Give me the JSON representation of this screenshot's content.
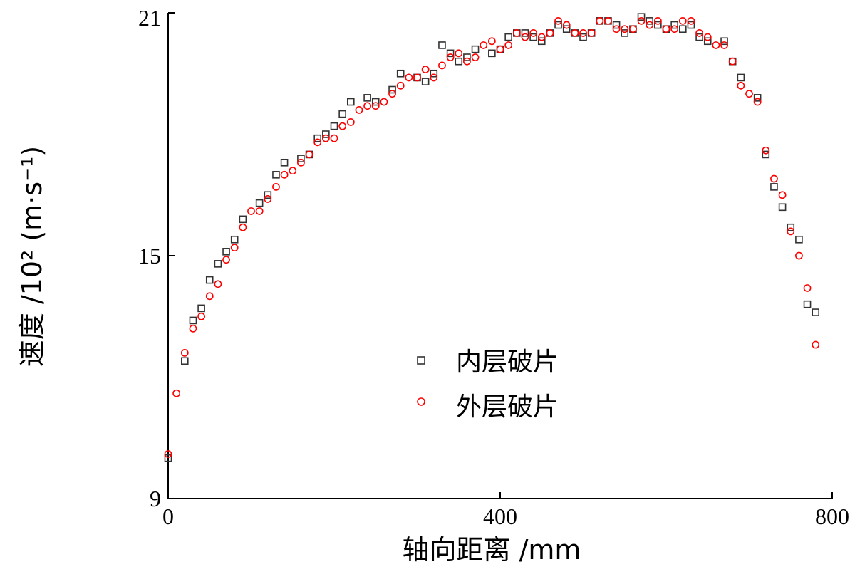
{
  "chart_data": {
    "type": "scatter",
    "xlabel": "轴向距离 /mm",
    "ylabel": "速度 /10² (m·s⁻¹)",
    "xlim": [
      0,
      800
    ],
    "ylim": [
      9,
      21
    ],
    "x_ticks": [
      "0",
      "400",
      "800"
    ],
    "y_ticks": [
      "9",
      "15",
      "21"
    ],
    "grid": false,
    "legend_position": "center",
    "series": [
      {
        "name": "内层破片",
        "marker": "square",
        "color": "#333333",
        "points": [
          [
            0,
            10.0
          ],
          [
            20,
            12.4
          ],
          [
            30,
            13.4
          ],
          [
            40,
            13.7
          ],
          [
            50,
            14.4
          ],
          [
            60,
            14.8
          ],
          [
            70,
            15.1
          ],
          [
            80,
            15.4
          ],
          [
            90,
            15.9
          ],
          [
            110,
            16.3
          ],
          [
            120,
            16.5
          ],
          [
            130,
            17.0
          ],
          [
            140,
            17.3
          ],
          [
            160,
            17.4
          ],
          [
            170,
            17.5
          ],
          [
            180,
            17.9
          ],
          [
            190,
            18.0
          ],
          [
            200,
            18.2
          ],
          [
            210,
            18.5
          ],
          [
            220,
            18.8
          ],
          [
            240,
            18.9
          ],
          [
            250,
            18.8
          ],
          [
            270,
            19.1
          ],
          [
            280,
            19.5
          ],
          [
            300,
            19.4
          ],
          [
            310,
            19.3
          ],
          [
            320,
            19.5
          ],
          [
            330,
            20.2
          ],
          [
            340,
            20.0
          ],
          [
            350,
            19.8
          ],
          [
            360,
            19.9
          ],
          [
            370,
            20.1
          ],
          [
            390,
            20.0
          ],
          [
            400,
            20.1
          ],
          [
            410,
            20.4
          ],
          [
            420,
            20.5
          ],
          [
            430,
            20.5
          ],
          [
            440,
            20.4
          ],
          [
            450,
            20.3
          ],
          [
            460,
            20.5
          ],
          [
            470,
            20.7
          ],
          [
            480,
            20.6
          ],
          [
            490,
            20.5
          ],
          [
            500,
            20.4
          ],
          [
            510,
            20.5
          ],
          [
            520,
            20.8
          ],
          [
            530,
            20.8
          ],
          [
            540,
            20.7
          ],
          [
            550,
            20.5
          ],
          [
            560,
            20.6
          ],
          [
            570,
            20.9
          ],
          [
            580,
            20.8
          ],
          [
            590,
            20.7
          ],
          [
            600,
            20.6
          ],
          [
            610,
            20.7
          ],
          [
            620,
            20.6
          ],
          [
            630,
            20.7
          ],
          [
            640,
            20.4
          ],
          [
            650,
            20.3
          ],
          [
            670,
            20.3
          ],
          [
            680,
            19.8
          ],
          [
            690,
            19.4
          ],
          [
            710,
            18.9
          ],
          [
            720,
            17.5
          ],
          [
            730,
            16.7
          ],
          [
            740,
            16.2
          ],
          [
            750,
            15.7
          ],
          [
            760,
            15.4
          ],
          [
            770,
            13.8
          ],
          [
            780,
            13.6
          ]
        ]
      },
      {
        "name": "外层破片",
        "marker": "circle",
        "color": "#ff0000",
        "points": [
          [
            0,
            10.1
          ],
          [
            10,
            11.6
          ],
          [
            20,
            12.6
          ],
          [
            30,
            13.2
          ],
          [
            40,
            13.5
          ],
          [
            50,
            14.0
          ],
          [
            60,
            14.3
          ],
          [
            70,
            14.9
          ],
          [
            80,
            15.2
          ],
          [
            90,
            15.7
          ],
          [
            100,
            16.1
          ],
          [
            110,
            16.1
          ],
          [
            120,
            16.4
          ],
          [
            130,
            16.7
          ],
          [
            140,
            17.0
          ],
          [
            150,
            17.1
          ],
          [
            160,
            17.3
          ],
          [
            170,
            17.5
          ],
          [
            180,
            17.8
          ],
          [
            190,
            17.9
          ],
          [
            200,
            17.9
          ],
          [
            210,
            18.2
          ],
          [
            220,
            18.3
          ],
          [
            230,
            18.6
          ],
          [
            240,
            18.7
          ],
          [
            250,
            18.7
          ],
          [
            260,
            18.8
          ],
          [
            270,
            19.0
          ],
          [
            280,
            19.2
          ],
          [
            290,
            19.4
          ],
          [
            300,
            19.4
          ],
          [
            310,
            19.6
          ],
          [
            320,
            19.4
          ],
          [
            330,
            19.7
          ],
          [
            340,
            19.9
          ],
          [
            350,
            20.0
          ],
          [
            360,
            19.8
          ],
          [
            370,
            19.9
          ],
          [
            380,
            20.2
          ],
          [
            390,
            20.3
          ],
          [
            400,
            20.1
          ],
          [
            410,
            20.2
          ],
          [
            420,
            20.5
          ],
          [
            430,
            20.4
          ],
          [
            440,
            20.5
          ],
          [
            450,
            20.4
          ],
          [
            460,
            20.5
          ],
          [
            470,
            20.8
          ],
          [
            480,
            20.7
          ],
          [
            490,
            20.5
          ],
          [
            500,
            20.5
          ],
          [
            510,
            20.5
          ],
          [
            520,
            20.8
          ],
          [
            530,
            20.8
          ],
          [
            540,
            20.6
          ],
          [
            550,
            20.6
          ],
          [
            560,
            20.6
          ],
          [
            570,
            20.8
          ],
          [
            580,
            20.7
          ],
          [
            590,
            20.8
          ],
          [
            600,
            20.6
          ],
          [
            610,
            20.6
          ],
          [
            620,
            20.8
          ],
          [
            630,
            20.8
          ],
          [
            640,
            20.5
          ],
          [
            650,
            20.4
          ],
          [
            660,
            20.2
          ],
          [
            670,
            20.2
          ],
          [
            680,
            19.8
          ],
          [
            690,
            19.2
          ],
          [
            700,
            19.0
          ],
          [
            710,
            18.8
          ],
          [
            720,
            17.6
          ],
          [
            730,
            16.9
          ],
          [
            740,
            16.5
          ],
          [
            750,
            15.6
          ],
          [
            760,
            15.0
          ],
          [
            770,
            14.2
          ],
          [
            780,
            12.8
          ]
        ]
      }
    ]
  }
}
